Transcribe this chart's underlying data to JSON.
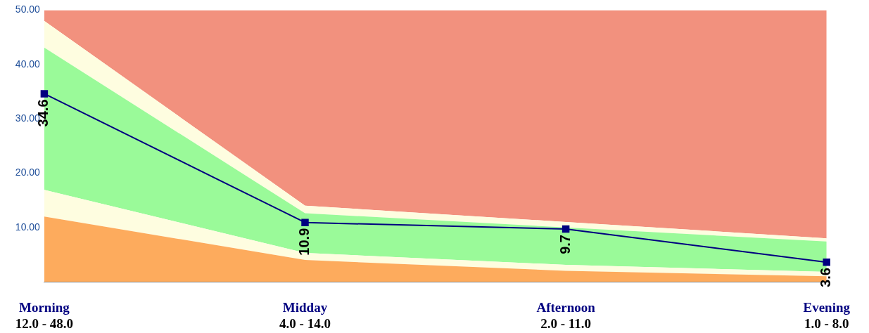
{
  "chart_data": {
    "type": "area",
    "stacked": true,
    "categories": [
      "Morning",
      "Midday",
      "Afternoon",
      "Evening"
    ],
    "series": [
      {
        "color": "#fdab5d",
        "values": [
          12,
          4,
          2,
          1
        ]
      },
      {
        "color": "#fefde0",
        "values": [
          4.9,
          1.3,
          1.1,
          0.8
        ]
      },
      {
        "color": "#9afa99",
        "values": [
          26.2,
          7.3,
          6.9,
          5.6
        ]
      },
      {
        "color": "#fefde0",
        "values": [
          4.9,
          1.4,
          1,
          0.6
        ]
      },
      {
        "color": "#f2917e",
        "values": [
          2,
          36,
          39,
          42
        ]
      },
      {
        "type": "line",
        "marker": "square",
        "color": "#000080",
        "values": [
          34.6,
          10.9,
          9.7,
          3.6
        ],
        "value_labels": [
          "34.6",
          "10.9",
          "9.7",
          "3.6"
        ]
      }
    ],
    "ylim": [
      0,
      50
    ],
    "yticks": [
      {
        "value": 10,
        "label": "10.00"
      },
      {
        "value": 20,
        "label": "20.00"
      },
      {
        "value": 30,
        "label": "30.00"
      },
      {
        "value": 40,
        "label": "40.00"
      },
      {
        "value": 50,
        "label": "50.00"
      }
    ],
    "grid": false,
    "legend": false,
    "annotations": [
      "12.0 - 48.0",
      "4.0 - 14.0",
      "2.0 - 11.0",
      "1.0 - 8.0"
    ]
  }
}
